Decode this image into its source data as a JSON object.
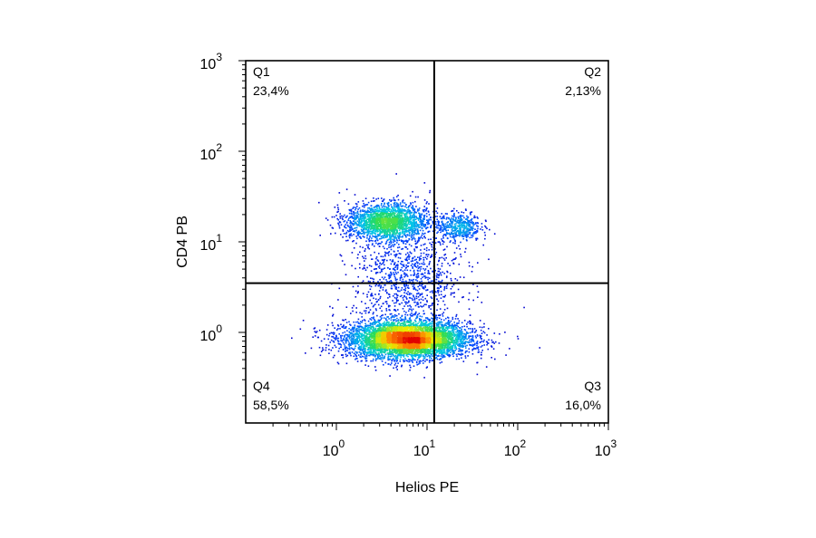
{
  "chart_data": {
    "type": "scatter",
    "style": "flow-cytometry density dot plot (blue-to-red density colormap)",
    "xlabel": "Helios PE",
    "ylabel": "CD4 PB",
    "x_scale": "log",
    "y_scale": "log",
    "xlim": [
      0.1,
      1000
    ],
    "ylim": [
      0.1,
      1000
    ],
    "x_ticks": [
      {
        "value": 1,
        "base": "10",
        "exp": "0"
      },
      {
        "value": 10,
        "base": "10",
        "exp": "1"
      },
      {
        "value": 100,
        "base": "10",
        "exp": "2"
      },
      {
        "value": 1000,
        "base": "10",
        "exp": "3"
      }
    ],
    "y_ticks": [
      {
        "value": 1,
        "base": "10",
        "exp": "0"
      },
      {
        "value": 10,
        "base": "10",
        "exp": "1"
      },
      {
        "value": 100,
        "base": "10",
        "exp": "2"
      },
      {
        "value": 1000,
        "base": "10",
        "exp": "3"
      }
    ],
    "gate_x": 12,
    "gate_y": 3.5,
    "quadrants": [
      {
        "name": "Q1",
        "percent": "23,4%",
        "position": "top-left"
      },
      {
        "name": "Q2",
        "percent": "2,13%",
        "position": "top-right"
      },
      {
        "name": "Q3",
        "percent": "16,0%",
        "position": "bottom-right"
      },
      {
        "name": "Q4",
        "percent": "58,5%",
        "position": "bottom-left"
      }
    ],
    "populations": [
      {
        "center_x": 6,
        "center_y": 0.85,
        "spread_x_decades": 0.34,
        "spread_y_decades": 0.1,
        "share": 0.6
      },
      {
        "center_x": 3.5,
        "center_y": 17,
        "spread_x_decades": 0.22,
        "spread_y_decades": 0.1,
        "share": 0.22
      },
      {
        "center_x": 22,
        "center_y": 15,
        "spread_x_decades": 0.12,
        "spread_y_decades": 0.08,
        "share": 0.05
      },
      {
        "center_x": 6,
        "center_y": 4,
        "spread_x_decades": 0.3,
        "spread_y_decades": 0.35,
        "share": 0.13
      }
    ],
    "grid": false,
    "legend": "none"
  }
}
